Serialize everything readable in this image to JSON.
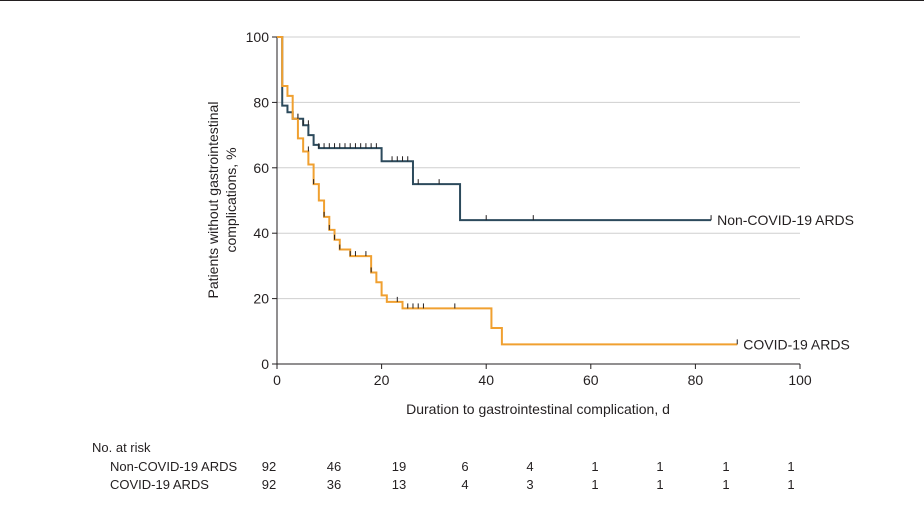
{
  "chart_data": {
    "type": "line",
    "ylabel_line1": "Patients without gastrointestinal",
    "ylabel_line2": "complications, %",
    "xlabel": "Duration to gastrointestinal complication, d",
    "xlim": [
      0,
      100
    ],
    "ylim": [
      0,
      100
    ],
    "x_ticks": [
      0,
      20,
      40,
      60,
      80,
      100
    ],
    "y_ticks": [
      0,
      20,
      40,
      60,
      80,
      100
    ],
    "grid": "horizontal",
    "colors": {
      "non_covid": "#2c4a5c",
      "covid": "#f0a030"
    },
    "series": [
      {
        "name": "Non-COVID-19 ARDS",
        "color": "#2c4a5c",
        "x": [
          0,
          1,
          2,
          3,
          5,
          6,
          7,
          8,
          20,
          26,
          35,
          83
        ],
        "y": [
          100,
          79,
          77,
          75,
          73,
          70,
          67,
          66,
          62,
          55,
          44,
          44
        ],
        "censor_x": [
          4,
          5,
          6,
          8,
          9,
          10,
          11,
          12,
          13,
          14,
          15,
          16,
          17,
          18,
          19,
          22,
          23,
          24,
          25,
          27,
          31,
          40,
          49,
          83
        ],
        "censor_y": [
          75,
          73,
          73,
          66,
          66,
          66,
          66,
          66,
          66,
          66,
          66,
          66,
          66,
          66,
          66,
          62,
          62,
          62,
          62,
          55,
          55,
          44,
          44,
          44
        ]
      },
      {
        "name": "COVID-19 ARDS",
        "color": "#f0a030",
        "x": [
          0,
          1,
          2,
          3,
          4,
          5,
          6,
          7,
          8,
          9,
          10,
          11,
          12,
          14,
          18,
          19,
          20,
          21,
          24,
          41,
          43,
          88
        ],
        "y": [
          100,
          85,
          82,
          75,
          69,
          65,
          61,
          55,
          50,
          45,
          41,
          38,
          35,
          33,
          28,
          25,
          21,
          19,
          17,
          11,
          6,
          6
        ],
        "censor_x": [
          4,
          6,
          7,
          9,
          10,
          11,
          12,
          14,
          15,
          17,
          18,
          23,
          25,
          26,
          27,
          28,
          34,
          88
        ],
        "censor_y": [
          75,
          65,
          55,
          45,
          41,
          38,
          35,
          33,
          33,
          33,
          28,
          19,
          17,
          17,
          17,
          17,
          17,
          6
        ]
      }
    ],
    "end_labels": [
      "Non-COVID-19 ARDS",
      "COVID-19 ARDS"
    ]
  },
  "risk_table": {
    "title": "No. at risk",
    "rows": [
      {
        "label": "Non-COVID-19 ARDS",
        "values": [
          "92",
          "46",
          "19",
          "6",
          "4",
          "1",
          "1",
          "1",
          "1"
        ]
      },
      {
        "label": "COVID-19 ARDS",
        "values": [
          "92",
          "36",
          "13",
          "4",
          "3",
          "1",
          "1",
          "1",
          "1"
        ]
      }
    ]
  }
}
